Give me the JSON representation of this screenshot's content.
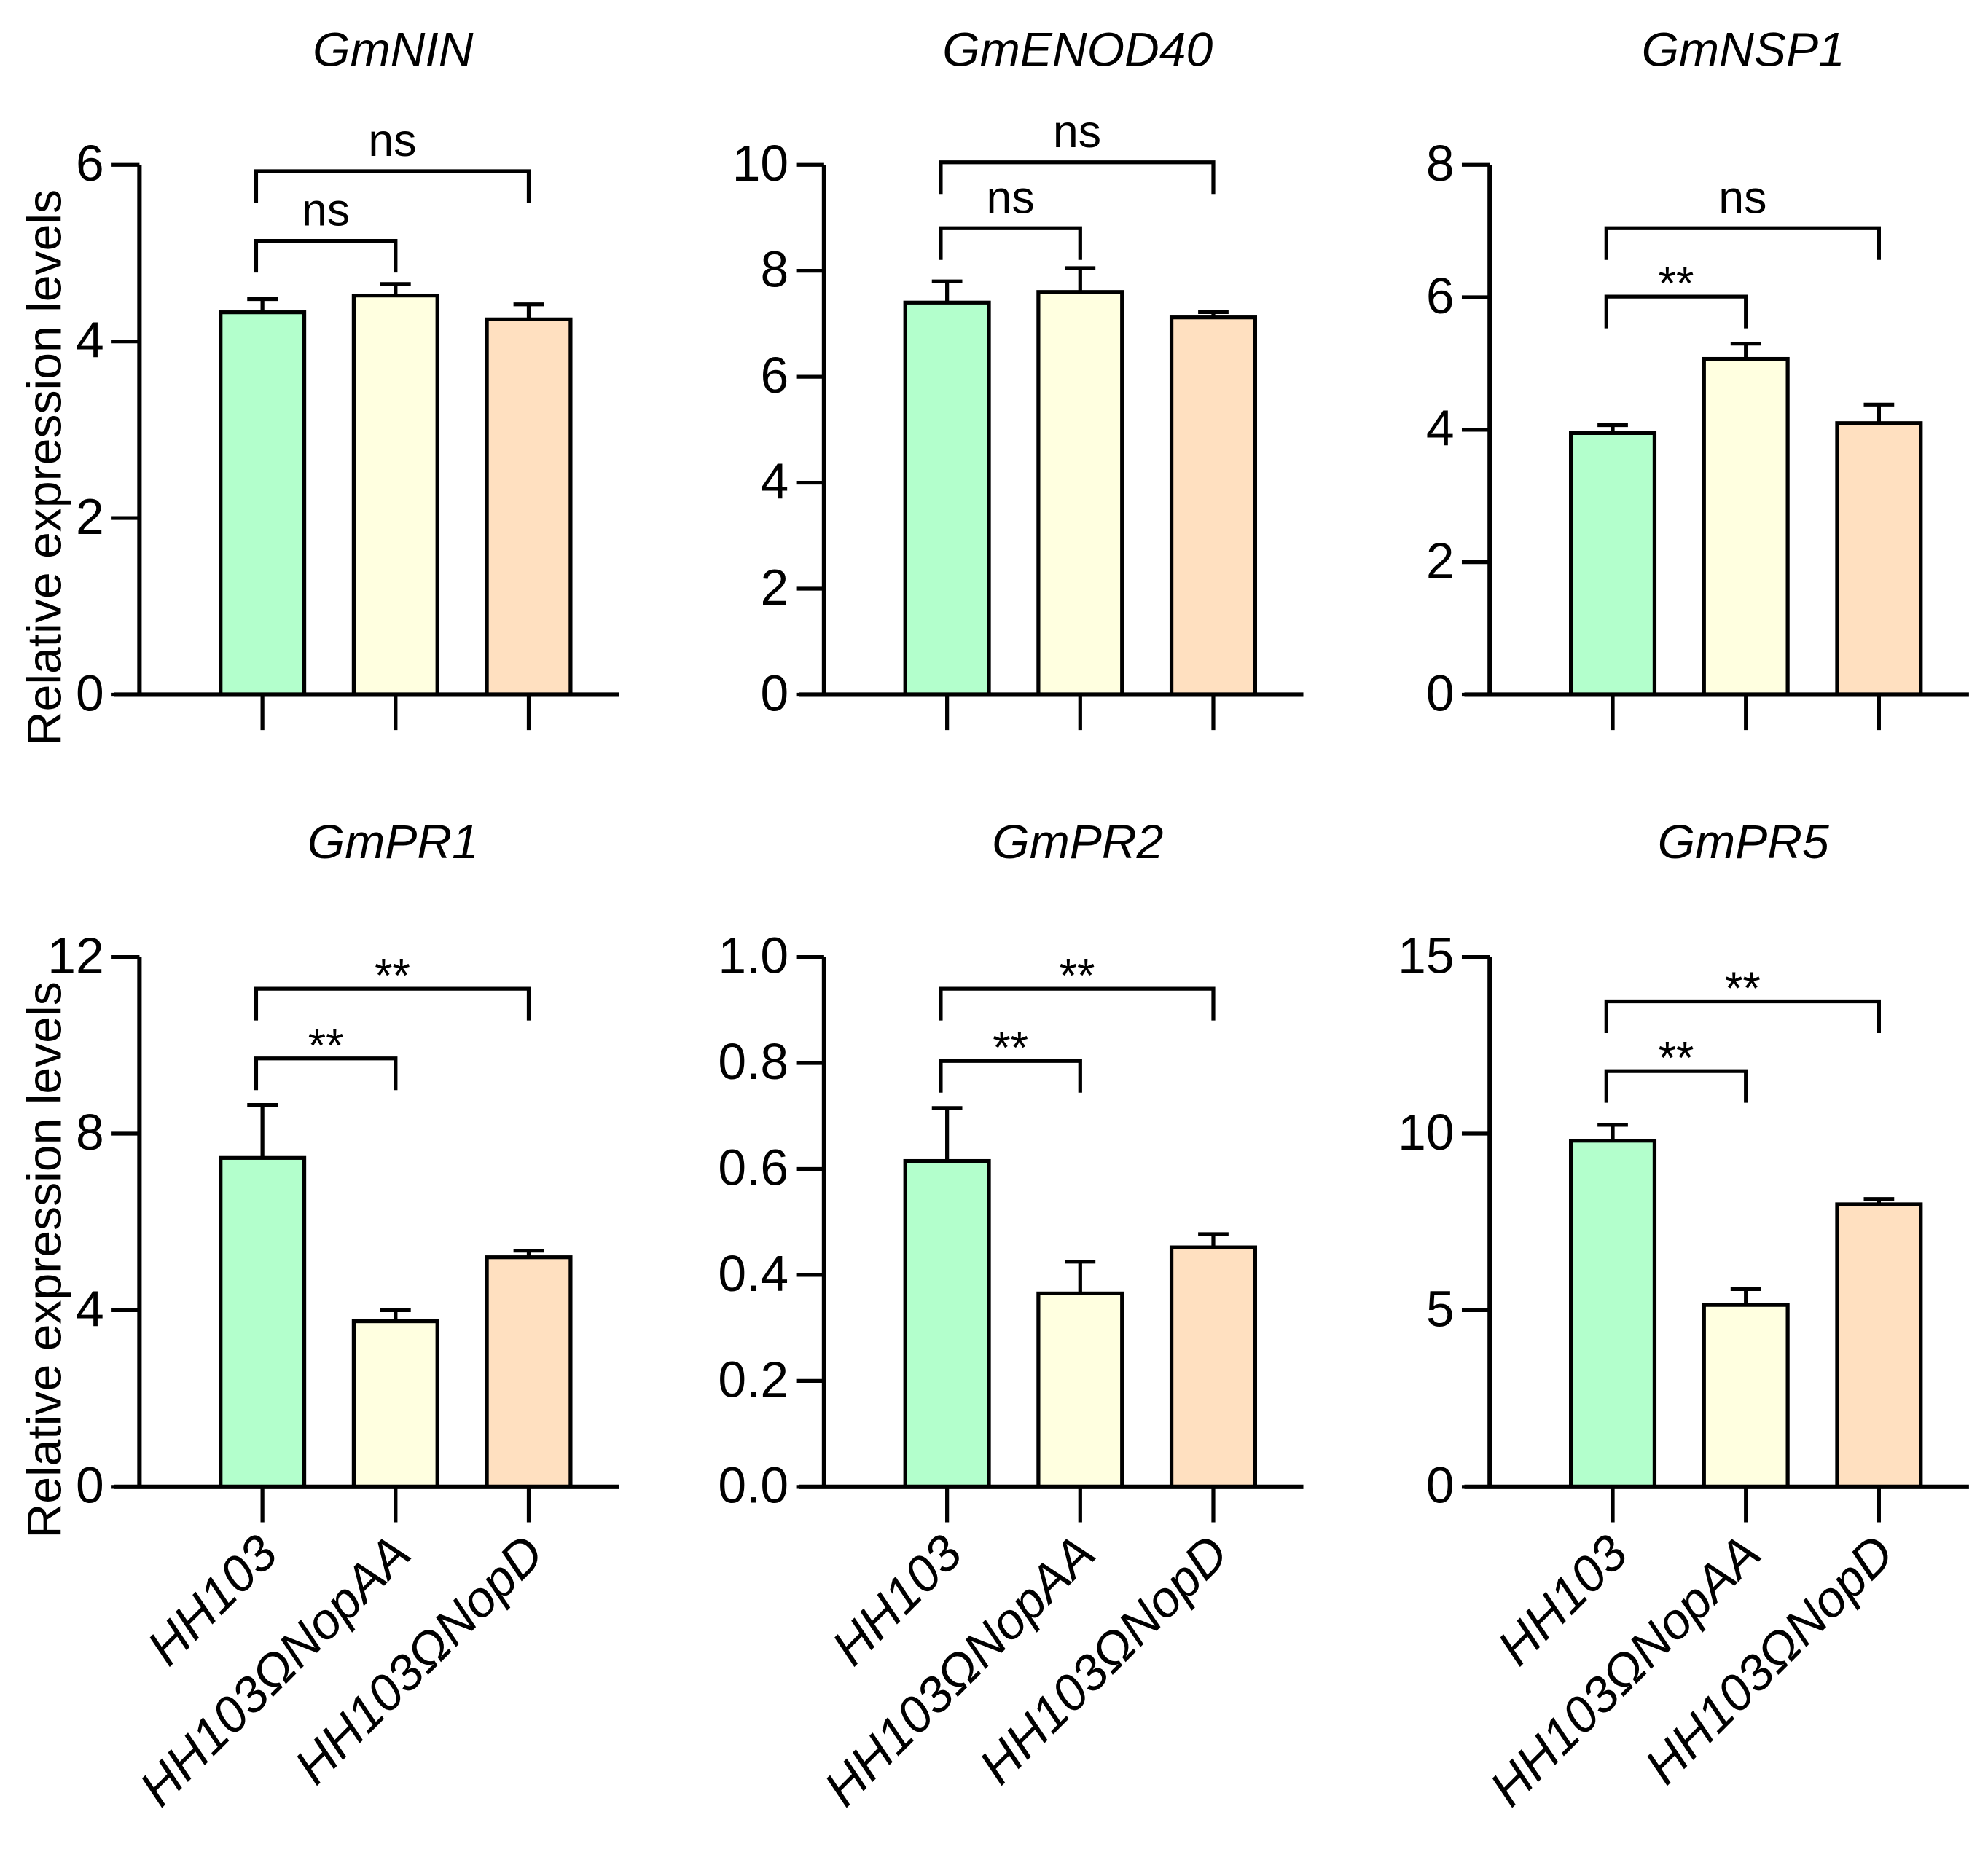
{
  "chart_data": [
    {
      "type": "bar",
      "title": "GmNIN",
      "ylabel": "Relative expression levels",
      "ylim": [
        0,
        6
      ],
      "yticks": [
        "0",
        "2",
        "4",
        "6"
      ],
      "categories": [
        "HH103",
        "HH103ΩNopAA",
        "HH103ΩNopD"
      ],
      "values": [
        4.33,
        4.52,
        4.25
      ],
      "errors": [
        0.15,
        0.13,
        0.17
      ],
      "comparisons": [
        {
          "pair": [
            0,
            1
          ],
          "label": "ns"
        },
        {
          "pair": [
            0,
            2
          ],
          "label": "ns"
        }
      ]
    },
    {
      "type": "bar",
      "title": "GmENOD40",
      "ylabel": "",
      "ylim": [
        0,
        10
      ],
      "yticks": [
        "0",
        "2",
        "4",
        "6",
        "8",
        "10"
      ],
      "categories": [
        "HH103",
        "HH103ΩNopAA",
        "HH103ΩNopD"
      ],
      "values": [
        7.4,
        7.6,
        7.12
      ],
      "errors": [
        0.4,
        0.45,
        0.1
      ],
      "comparisons": [
        {
          "pair": [
            0,
            1
          ],
          "label": "ns"
        },
        {
          "pair": [
            0,
            2
          ],
          "label": "ns"
        }
      ]
    },
    {
      "type": "bar",
      "title": "GmNSP1",
      "ylabel": "",
      "ylim": [
        0,
        8
      ],
      "yticks": [
        "0",
        "2",
        "4",
        "6",
        "8"
      ],
      "categories": [
        "HH103",
        "HH103ΩNopAA",
        "HH103ΩNopD"
      ],
      "values": [
        3.95,
        5.07,
        4.1
      ],
      "errors": [
        0.12,
        0.23,
        0.28
      ],
      "comparisons": [
        {
          "pair": [
            0,
            1
          ],
          "label": "**"
        },
        {
          "pair": [
            0,
            2
          ],
          "label": "ns"
        }
      ]
    },
    {
      "type": "bar",
      "title": "GmPR1",
      "ylabel": "Relative expression levels",
      "ylim": [
        0,
        12
      ],
      "yticks": [
        "0",
        "4",
        "8",
        "12"
      ],
      "categories": [
        "HH103",
        "HH103ΩNopAA",
        "HH103ΩNopD"
      ],
      "values": [
        7.45,
        3.75,
        5.2
      ],
      "errors": [
        1.2,
        0.25,
        0.15
      ],
      "comparisons": [
        {
          "pair": [
            0,
            1
          ],
          "label": "**"
        },
        {
          "pair": [
            0,
            2
          ],
          "label": "**"
        }
      ]
    },
    {
      "type": "bar",
      "title": "GmPR2",
      "ylabel": "",
      "ylim": [
        0,
        1
      ],
      "yticks": [
        "0.0",
        "0.2",
        "0.4",
        "0.6",
        "0.8",
        "1.0"
      ],
      "categories": [
        "HH103",
        "HH103ΩNopAA",
        "HH103ΩNopD"
      ],
      "values": [
        0.615,
        0.365,
        0.452
      ],
      "errors": [
        0.1,
        0.06,
        0.025
      ],
      "comparisons": [
        {
          "pair": [
            0,
            1
          ],
          "label": "**"
        },
        {
          "pair": [
            0,
            2
          ],
          "label": "**"
        }
      ]
    },
    {
      "type": "bar",
      "title": "GmPR5",
      "ylabel": "",
      "ylim": [
        0,
        15
      ],
      "yticks": [
        "0",
        "5",
        "10",
        "15"
      ],
      "categories": [
        "HH103",
        "HH103ΩNopAA",
        "HH103ΩNopD"
      ],
      "values": [
        9.8,
        5.15,
        8.0
      ],
      "errors": [
        0.45,
        0.45,
        0.15
      ],
      "comparisons": [
        {
          "pair": [
            0,
            1
          ],
          "label": "**"
        },
        {
          "pair": [
            0,
            2
          ],
          "label": "**"
        }
      ]
    }
  ],
  "colors": [
    "#b3ffcc",
    "#ffffe0",
    "#ffe0c0"
  ]
}
